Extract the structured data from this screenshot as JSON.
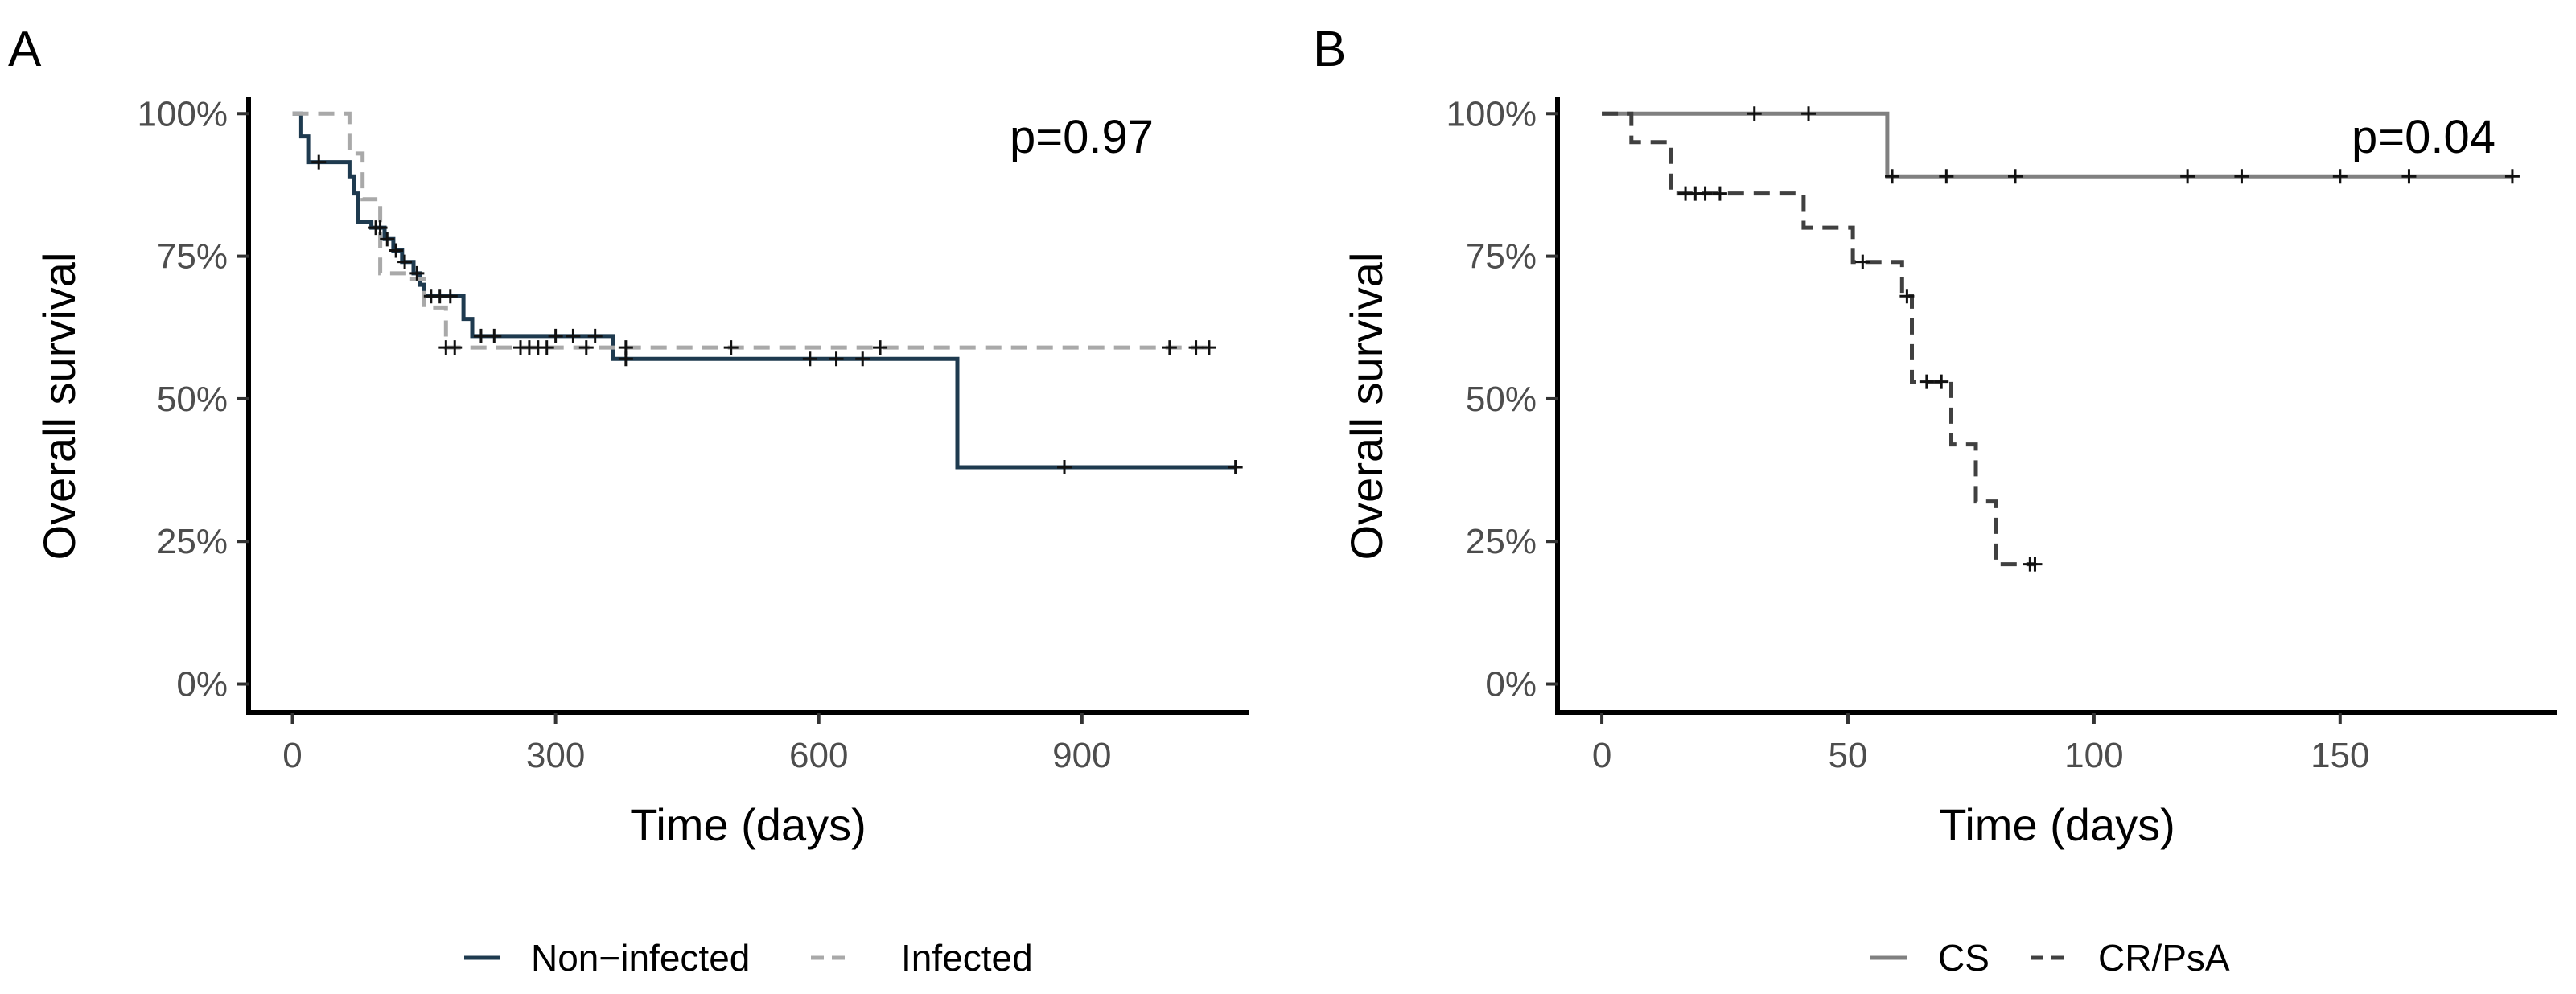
{
  "chart_data": [
    {
      "type": "line",
      "subtype": "kaplan-meier",
      "panel_label": "A",
      "annotation": "p=0.97",
      "xlabel": "Time (days)",
      "ylabel": "Overall survival",
      "xlim": [
        -50,
        1090
      ],
      "ylim": [
        -0.05,
        1.03
      ],
      "x_ticks": [
        0,
        300,
        600,
        900
      ],
      "x_tick_labels": [
        "0",
        "300",
        "600",
        "900"
      ],
      "y_ticks": [
        0,
        0.25,
        0.5,
        0.75,
        1.0
      ],
      "y_tick_labels": [
        "0%",
        "25%",
        "50%",
        "75%",
        "100%"
      ],
      "legend_position": "bottom",
      "series": [
        {
          "name": "Non−infected",
          "color": "#1e3a4f",
          "dash": "solid",
          "steps": [
            [
              0,
              1.0
            ],
            [
              10,
              0.96
            ],
            [
              18,
              0.915
            ],
            [
              65,
              0.89
            ],
            [
              70,
              0.86
            ],
            [
              75,
              0.81
            ],
            [
              90,
              0.8
            ],
            [
              105,
              0.78
            ],
            [
              115,
              0.76
            ],
            [
              125,
              0.74
            ],
            [
              138,
              0.72
            ],
            [
              145,
              0.7
            ],
            [
              150,
              0.68
            ],
            [
              195,
              0.64
            ],
            [
              205,
              0.61
            ],
            [
              365,
              0.57
            ],
            [
              758,
              0.38
            ],
            [
              1075,
              0.38
            ]
          ],
          "censor": [
            [
              30,
              0.915
            ],
            [
              95,
              0.8
            ],
            [
              100,
              0.8
            ],
            [
              108,
              0.78
            ],
            [
              118,
              0.76
            ],
            [
              128,
              0.74
            ],
            [
              142,
              0.72
            ],
            [
              158,
              0.68
            ],
            [
              168,
              0.68
            ],
            [
              180,
              0.68
            ],
            [
              215,
              0.61
            ],
            [
              230,
              0.61
            ],
            [
              300,
              0.61
            ],
            [
              320,
              0.61
            ],
            [
              345,
              0.61
            ],
            [
              380,
              0.57
            ],
            [
              590,
              0.57
            ],
            [
              620,
              0.57
            ],
            [
              650,
              0.57
            ],
            [
              880,
              0.38
            ],
            [
              1075,
              0.38
            ]
          ]
        },
        {
          "name": "Infected",
          "color": "#a9a9a9",
          "dash": "dashed",
          "steps": [
            [
              0,
              1.0
            ],
            [
              65,
              0.93
            ],
            [
              80,
              0.85
            ],
            [
              100,
              0.72
            ],
            [
              130,
              0.71
            ],
            [
              150,
              0.66
            ],
            [
              175,
              0.59
            ],
            [
              1045,
              0.59
            ]
          ],
          "censor": [
            [
              175,
              0.59
            ],
            [
              185,
              0.59
            ],
            [
              260,
              0.59
            ],
            [
              270,
              0.59
            ],
            [
              280,
              0.59
            ],
            [
              290,
              0.59
            ],
            [
              335,
              0.59
            ],
            [
              380,
              0.59
            ],
            [
              500,
              0.59
            ],
            [
              670,
              0.59
            ],
            [
              1000,
              0.59
            ],
            [
              1030,
              0.59
            ],
            [
              1045,
              0.59
            ]
          ]
        }
      ]
    },
    {
      "type": "line",
      "subtype": "kaplan-meier",
      "panel_label": "B",
      "annotation": "p=0.04",
      "xlabel": "Time (days)",
      "ylabel": "Overall survival",
      "xlim": [
        -9,
        194
      ],
      "ylim": [
        -0.05,
        1.03
      ],
      "x_ticks": [
        0,
        50,
        100,
        150
      ],
      "x_tick_labels": [
        "0",
        "50",
        "100",
        "150"
      ],
      "y_ticks": [
        0,
        0.25,
        0.5,
        0.75,
        1.0
      ],
      "y_tick_labels": [
        "0%",
        "25%",
        "50%",
        "75%",
        "100%"
      ],
      "legend_position": "bottom",
      "series": [
        {
          "name": "CS",
          "color": "#808080",
          "dash": "solid",
          "steps": [
            [
              0,
              1.0
            ],
            [
              58,
              0.89
            ],
            [
              185,
              0.89
            ]
          ],
          "censor": [
            [
              31,
              1.0
            ],
            [
              42,
              1.0
            ],
            [
              59,
              0.89
            ],
            [
              70,
              0.89
            ],
            [
              84,
              0.89
            ],
            [
              119,
              0.89
            ],
            [
              130,
              0.89
            ],
            [
              150,
              0.89
            ],
            [
              164,
              0.89
            ],
            [
              185,
              0.89
            ]
          ]
        },
        {
          "name": "CR/PsA",
          "color": "#404040",
          "dash": "dashed",
          "steps": [
            [
              0,
              1.0
            ],
            [
              6,
              0.95
            ],
            [
              14,
              0.86
            ],
            [
              41,
              0.8
            ],
            [
              51,
              0.74
            ],
            [
              61,
              0.68
            ],
            [
              63,
              0.53
            ],
            [
              71,
              0.42
            ],
            [
              76,
              0.32
            ],
            [
              80,
              0.21
            ],
            [
              88,
              0.21
            ]
          ],
          "censor": [
            [
              17,
              0.86
            ],
            [
              19,
              0.86
            ],
            [
              21,
              0.86
            ],
            [
              24,
              0.86
            ],
            [
              53,
              0.74
            ],
            [
              62,
              0.68
            ],
            [
              66,
              0.53
            ],
            [
              69,
              0.53
            ],
            [
              87,
              0.21
            ],
            [
              88,
              0.21
            ]
          ]
        }
      ]
    }
  ]
}
